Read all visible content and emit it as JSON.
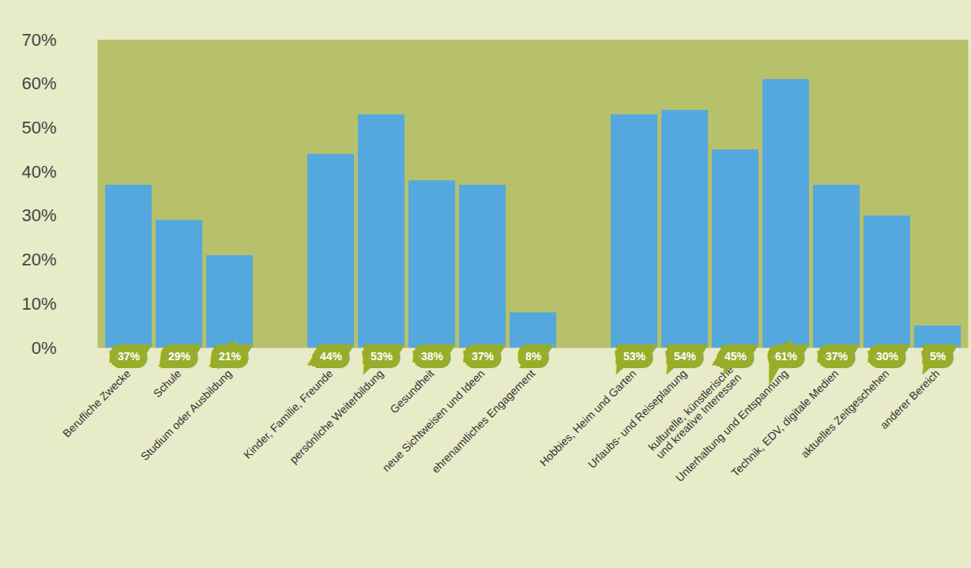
{
  "chart_data": {
    "type": "bar",
    "categories": [
      "Berufliche Zwecke",
      "Schule",
      "Studium oder Ausbildung",
      null,
      "Kinder, Familie, Freunde",
      "persönliche Weiterbildung",
      "Gesundheit",
      "neue Sichtweisen und Ideen",
      "ehrenamtliches Engagement",
      null,
      "Hobbies, Heim und Garten",
      "Urlaubs- und Reiseplanung",
      "kulturelle, künstlerische und kreative Interessen",
      "Unterhaltung und Entspannung",
      "Technik, EDV, digitale Medien",
      "aktuelles Zeitgeschehen",
      "anderer Bereich"
    ],
    "values": [
      37,
      29,
      21,
      null,
      44,
      53,
      38,
      37,
      8,
      null,
      53,
      54,
      45,
      61,
      37,
      30,
      5
    ],
    "value_labels": [
      "37%",
      "29%",
      "21%",
      null,
      "44%",
      "53%",
      "38%",
      "37%",
      "8%",
      null,
      "53%",
      "54%",
      "45%",
      "61%",
      "37%",
      "30%",
      "5%"
    ],
    "color": "#55a8de",
    "ylim": [
      0,
      70
    ],
    "yticks": [
      {
        "value": 0,
        "label": "0%"
      },
      {
        "value": 10,
        "label": "10%"
      },
      {
        "value": 20,
        "label": "20%"
      },
      {
        "value": 30,
        "label": "30%"
      },
      {
        "value": 40,
        "label": "40%"
      },
      {
        "value": 50,
        "label": "50%"
      },
      {
        "value": 60,
        "label": "60%"
      },
      {
        "value": 70,
        "label": "70%"
      }
    ],
    "data_labels": true,
    "grid": false
  }
}
